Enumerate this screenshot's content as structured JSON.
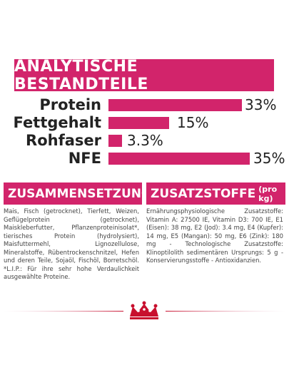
{
  "banner": {
    "title": "ANALYTISCHE BESTANDTEILE"
  },
  "nutrients": [
    {
      "label": "Protein",
      "value": "33%",
      "fraction": 0.33
    },
    {
      "label": "Fettgehalt",
      "value": "15%",
      "fraction": 0.15
    },
    {
      "label": "Rohfaser",
      "value": "3.3%",
      "fraction": 0.033
    },
    {
      "label": "NFE",
      "value": "35%",
      "fraction": 0.35
    }
  ],
  "composition": {
    "title": "ZUSAMMENSETZUNG",
    "text": "Mais, Fisch (getrocknet), Tierfett, Weizen, Geflügelprotein (getrocknet), Maiskleberfutter, Pflanzenproteinisolat*, tierisches Protein (hydrolysiert), Maisfuttermehl, Lignozellulose, Mineralstoffe, Rübentrockenschnitzel, Hefen und deren Teile, Sojaöl, Fischöl, Borretschöl. *L.I.P.: Für ihre sehr hohe Verdaulichkeit ausgewählte Proteine."
  },
  "additives": {
    "title": "ZUSATZSTOFFE",
    "title_suffix": "(pro kg)",
    "text": "Ernährungsphysiologische Zusatzstoffe: Vitamin A: 27500 IE, Vitamin D3: 700 IE, E1 (Eisen): 38 mg, E2 (Jod): 3.4 mg, E4 (Kupfer): 14 mg, E5 (Mangan): 50 mg, E6 (Zink): 180 mg - Technologische Zusatzstoffe: Klinoptilolith sedimentären Ursprungs: 5 g - Konservierungsstoffe - Antioxidanzien."
  },
  "colors": {
    "accent": "#d2246b",
    "logo_red": "#c8102e"
  },
  "logo": {
    "icon": "crown-icon"
  }
}
